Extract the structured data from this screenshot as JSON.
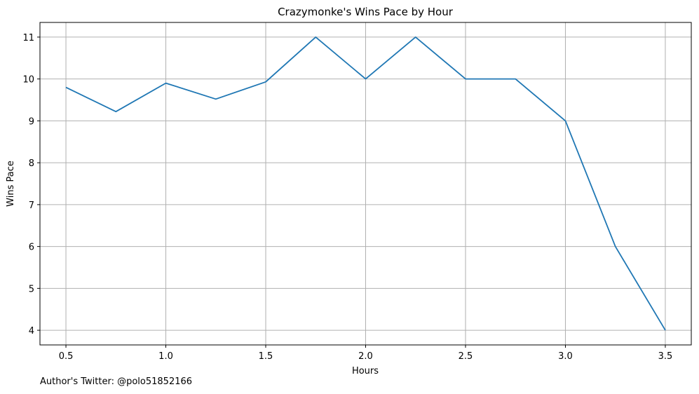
{
  "chart_data": {
    "type": "line",
    "title": "Crazymonke's Wins Pace by Hour",
    "xlabel": "Hours",
    "ylabel": "Wins Pace",
    "xlim": [
      0.37,
      3.63
    ],
    "ylim": [
      3.65,
      11.35
    ],
    "xticks": [
      0.5,
      1.0,
      1.5,
      2.0,
      2.5,
      3.0,
      3.5
    ],
    "xtick_labels": [
      "0.5",
      "1.0",
      "1.5",
      "2.0",
      "2.5",
      "3.0",
      "3.5"
    ],
    "yticks": [
      4,
      5,
      6,
      7,
      8,
      9,
      10,
      11
    ],
    "ytick_labels": [
      "4",
      "5",
      "6",
      "7",
      "8",
      "9",
      "10",
      "11"
    ],
    "grid": true,
    "line_color": "#1f77b4",
    "x": [
      0.5,
      0.75,
      1.0,
      1.25,
      1.5,
      1.75,
      2.0,
      2.25,
      2.5,
      2.75,
      3.0,
      3.25,
      3.5
    ],
    "y": [
      9.8,
      9.22,
      9.9,
      9.52,
      9.93,
      11.0,
      10.0,
      11.0,
      10.0,
      10.0,
      9.0,
      6.0,
      4.0
    ]
  },
  "footer": {
    "note": "Author's Twitter: @polo51852166"
  }
}
